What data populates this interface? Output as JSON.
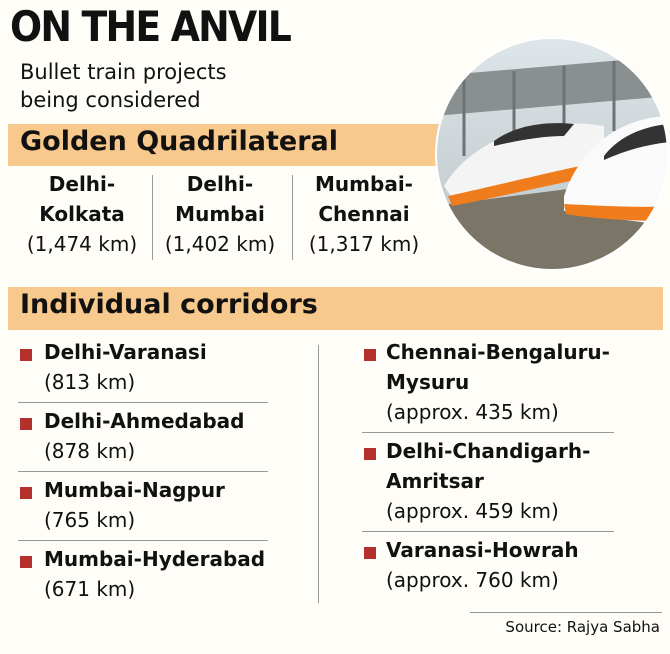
{
  "header": {
    "title": "ON THE ANVIL",
    "subtitle": [
      "Bullet train projects",
      "being considered"
    ]
  },
  "golden_quadrilateral": {
    "heading": "Golden Quadrilateral",
    "routes": [
      {
        "name": [
          "Delhi-",
          "Kolkata"
        ],
        "length": "(1,474 km)"
      },
      {
        "name": [
          "Delhi-",
          "Mumbai"
        ],
        "length": "(1,402 km)"
      },
      {
        "name": [
          "Mumbai-",
          "Chennai"
        ],
        "length": "(1,317 km)"
      }
    ]
  },
  "individual_corridors": {
    "heading": "Individual corridors",
    "left": [
      {
        "name": [
          "Delhi-Varanasi"
        ],
        "length": "(813 km)"
      },
      {
        "name": [
          "Delhi-Ahmedabad"
        ],
        "length": "(878 km)"
      },
      {
        "name": [
          "Mumbai-Nagpur"
        ],
        "length": "(765 km)"
      },
      {
        "name": [
          "Mumbai-Hyderabad"
        ],
        "length": "(671 km)"
      }
    ],
    "right": [
      {
        "name": [
          "Chennai-Bengaluru-",
          "Mysuru"
        ],
        "length": "(approx. 435 km)"
      },
      {
        "name": [
          "Delhi-Chandigarh-",
          "Amritsar"
        ],
        "length": "(approx. 459 km)"
      },
      {
        "name": [
          "Varanasi-Howrah"
        ],
        "length": "(approx. 760 km)"
      }
    ]
  },
  "source": "Source: Rajya Sabha"
}
